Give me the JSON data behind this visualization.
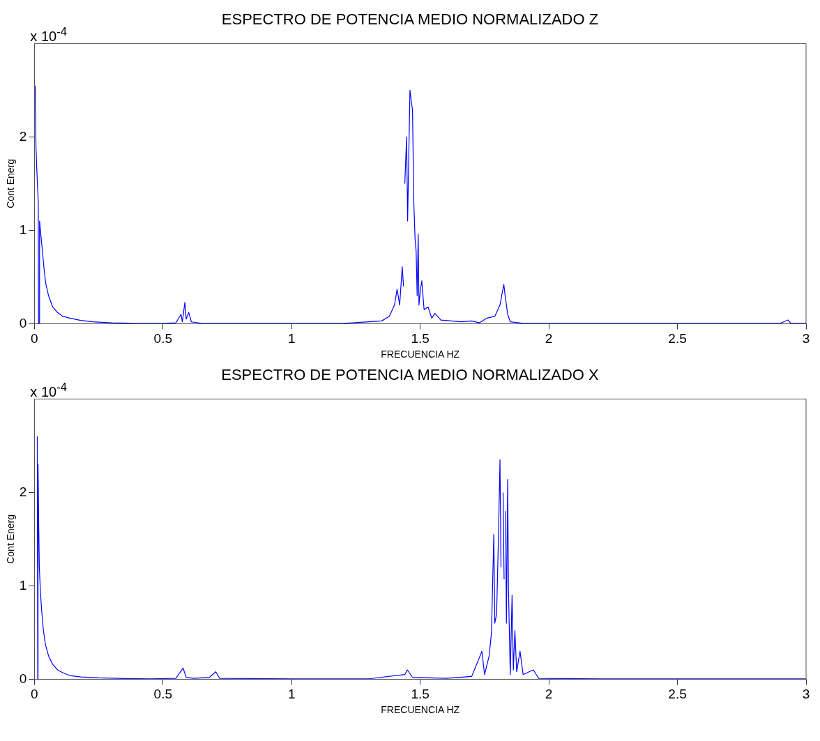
{
  "chart_data": [
    {
      "type": "line",
      "title": "ESPECTRO DE POTENCIA MEDIO NORMALIZADO Z",
      "xlabel": "FRECUENCIA HZ",
      "ylabel": "Cont Energ",
      "annotations": [
        "x 10$^{-4}$"
      ],
      "xlim": [
        0,
        3
      ],
      "xticks": [
        0,
        0.5,
        1,
        1.5,
        2,
        2.5,
        3
      ],
      "ylim": [
        0,
        3
      ],
      "yticks": [
        0,
        1,
        2
      ],
      "marker": "none",
      "line_style": "solid",
      "series": [
        {
          "color": "#0000ff",
          "x": [
            0.003,
            0.006,
            0.01,
            0.015,
            0.016,
            0.017,
            0.018,
            0.02,
            0.025,
            0.031,
            0.037,
            0.044,
            0.055,
            0.071,
            0.09,
            0.11,
            0.137,
            0.18,
            0.227,
            0.3,
            0.4,
            0.5,
            0.55,
            0.57,
            0.575,
            0.585,
            0.59,
            0.6,
            0.61,
            0.65,
            0.8,
            1.0,
            1.2,
            1.3,
            1.35,
            1.38,
            1.4,
            1.41,
            1.42,
            1.43,
            1.435,
            1.437,
            1.44,
            1.447,
            1.451,
            1.46,
            1.47,
            1.475,
            1.48,
            1.484,
            1.488,
            1.492,
            1.495,
            1.5,
            1.506,
            1.515,
            1.53,
            1.545,
            1.557,
            1.58,
            1.62,
            1.66,
            1.7,
            1.73,
            1.76,
            1.79,
            1.81,
            1.82,
            1.825,
            1.83,
            1.84,
            1.85,
            1.9,
            2.2,
            2.5,
            2.9,
            2.93,
            2.94,
            3
          ],
          "values": [
            2.55,
            1.9,
            1.6,
            1.3,
            0,
            null,
            0,
            1.1,
            0.95,
            0.78,
            0.6,
            0.43,
            0.3,
            0.18,
            0.12,
            0.08,
            0.06,
            0.035,
            0.02,
            0.01,
            0.005,
            0.005,
            0.01,
            0.1,
            0.02,
            0.23,
            0.05,
            0.12,
            0.02,
            0.005,
            0.005,
            0.005,
            0.005,
            0.02,
            0.03,
            0.08,
            0.2,
            0.37,
            0.2,
            0.61,
            0.4,
            null,
            1.5,
            2.0,
            1.1,
            2.5,
            2.28,
            1.3,
            0.9,
            0.78,
            0.3,
            0.96,
            0.2,
            0.35,
            0.46,
            0.15,
            0.18,
            0.06,
            0.11,
            0.04,
            0.03,
            0.02,
            0.03,
            0.01,
            0.06,
            0.08,
            0.2,
            0.35,
            0.42,
            0.3,
            0.1,
            0.02,
            0.005,
            0.005,
            0.005,
            0.005,
            0.04,
            0.005,
            0.005
          ]
        }
      ]
    },
    {
      "type": "line",
      "title": "ESPECTRO DE POTENCIA MEDIO NORMALIZADO X",
      "xlabel": "FRECUENCIA HZ",
      "ylabel": "Cont Energ",
      "annotations": [
        "x 10$^{-4}$"
      ],
      "xlim": [
        0,
        3
      ],
      "xticks": [
        0,
        0.5,
        1,
        1.5,
        2,
        2.5,
        3
      ],
      "ylim": [
        0,
        3
      ],
      "yticks": [
        0,
        1,
        2
      ],
      "marker": "none",
      "line_style": "solid",
      "series": [
        {
          "color": "#0000ff",
          "x": [
            0.011,
            0.013,
            0.014,
            0.017,
            0.019,
            0.023,
            0.028,
            0.035,
            0.043,
            0.055,
            0.071,
            0.09,
            0.11,
            0.137,
            0.18,
            0.25,
            0.35,
            0.45,
            0.55,
            0.578,
            0.59,
            0.62,
            0.68,
            0.705,
            0.72,
            1.0,
            1.3,
            1.44,
            1.45,
            1.47,
            1.6,
            1.7,
            1.74,
            1.75,
            1.768,
            1.777,
            1.786,
            1.79,
            1.797,
            1.805,
            1.81,
            1.814,
            1.818,
            1.822,
            1.826,
            1.828,
            1.832,
            1.835,
            1.84,
            1.843,
            1.85,
            1.857,
            1.862,
            1.868,
            1.875,
            1.888,
            1.9,
            1.94,
            1.96,
            2.2,
            2.6,
            3
          ],
          "values": [
            2.6,
            0,
            2.3,
            1.6,
            1.21,
            0.95,
            0.74,
            0.52,
            0.37,
            0.25,
            0.16,
            0.1,
            0.07,
            0.04,
            0.025,
            0.015,
            0.008,
            0.005,
            0.01,
            0.12,
            0.02,
            0.01,
            0.02,
            0.08,
            0.01,
            0.005,
            0.005,
            0.05,
            0.1,
            0.02,
            0.01,
            0.03,
            0.3,
            0.05,
            0.25,
            0.5,
            1.55,
            0.6,
            0.7,
            1.63,
            2.35,
            1.2,
            null,
            2.0,
            1.07,
            null,
            1.8,
            0.6,
            2.14,
            0.97,
            0.05,
            0.9,
            0.1,
            0.52,
            0.08,
            0.3,
            0.05,
            0.1,
            0.01,
            0.005,
            0.005,
            0.005
          ]
        }
      ]
    }
  ]
}
